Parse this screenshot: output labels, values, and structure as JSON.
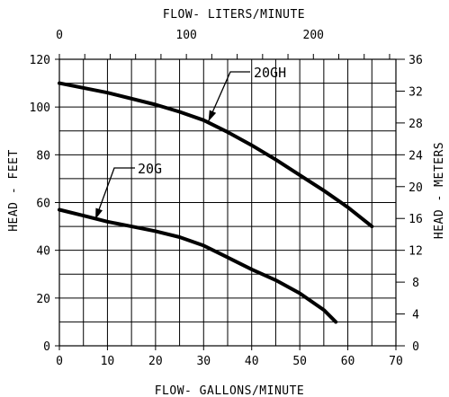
{
  "chart_data": {
    "type": "line",
    "x_bottom": {
      "label": "FLOW- GALLONS/MINUTE",
      "range": [
        0,
        70
      ],
      "ticks": [
        0,
        10,
        20,
        30,
        40,
        50,
        60,
        70
      ]
    },
    "x_top": {
      "label": "FLOW- LITERS/MINUTE",
      "ticks": [
        0,
        100,
        200
      ]
    },
    "y_left": {
      "label": "HEAD - FEET",
      "range": [
        0,
        120
      ],
      "ticks": [
        0,
        20,
        40,
        60,
        80,
        100,
        120
      ]
    },
    "y_right": {
      "label": "HEAD - METERS",
      "range": [
        0,
        36
      ],
      "ticks": [
        0,
        4,
        8,
        12,
        16,
        20,
        24,
        28,
        32,
        36
      ]
    },
    "grid": true,
    "series": [
      {
        "name": "20GH",
        "points": [
          [
            0,
            110
          ],
          [
            10,
            106
          ],
          [
            20,
            101
          ],
          [
            25,
            98
          ],
          [
            30,
            94.5
          ],
          [
            35,
            89.5
          ],
          [
            40,
            84
          ],
          [
            45,
            78
          ],
          [
            50,
            71.5
          ],
          [
            55,
            65
          ],
          [
            60,
            58
          ],
          [
            65,
            50
          ]
        ]
      },
      {
        "name": "20G",
        "points": [
          [
            0,
            57
          ],
          [
            5,
            54.5
          ],
          [
            10,
            52
          ],
          [
            15,
            50
          ],
          [
            20,
            48
          ],
          [
            25,
            45.5
          ],
          [
            30,
            42
          ],
          [
            35,
            37
          ],
          [
            40,
            32
          ],
          [
            45,
            27.5
          ],
          [
            50,
            22
          ],
          [
            55,
            15
          ],
          [
            57.5,
            10
          ]
        ]
      }
    ]
  }
}
